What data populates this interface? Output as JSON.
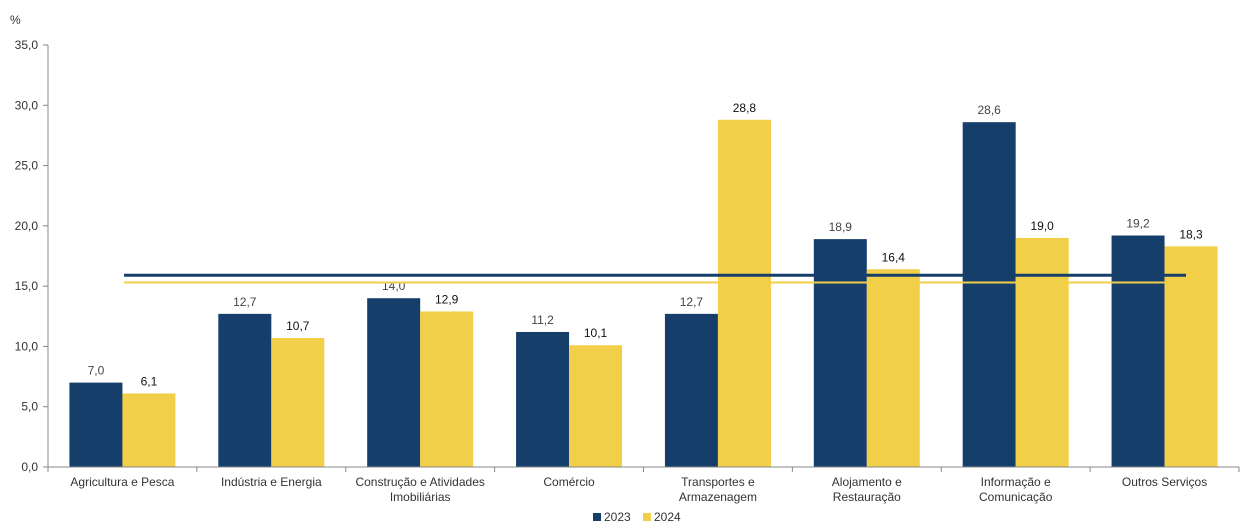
{
  "chart_data": {
    "type": "bar",
    "unit_label": "%",
    "categories": [
      [
        "Agricultura e Pesca"
      ],
      [
        "Indústria e Energia"
      ],
      [
        "Construção e Atividades",
        "Imobiliárias"
      ],
      [
        "Comércio"
      ],
      [
        "Transportes e",
        "Armazenagem"
      ],
      [
        "Alojamento e",
        "Restauração"
      ],
      [
        "Informação e",
        "Comunicação"
      ],
      [
        "Outros Serviços"
      ]
    ],
    "series": [
      {
        "name": "2023",
        "color": "#163E6B",
        "values": [
          7.0,
          12.7,
          14.0,
          11.2,
          12.7,
          18.9,
          28.6,
          19.2
        ],
        "labels": [
          "7,0",
          "12,7",
          "14,0",
          "11,2",
          "12,7",
          "18,9",
          "28,6",
          "19,2"
        ]
      },
      {
        "name": "2024",
        "color": "#F2CF48",
        "values": [
          6.1,
          10.7,
          12.9,
          10.1,
          28.8,
          16.4,
          19.0,
          18.3
        ],
        "labels": [
          "6,1",
          "10,7",
          "12,9",
          "10,1",
          "28,8",
          "16,4",
          "19,0",
          "18,3"
        ]
      }
    ],
    "reference_lines": [
      {
        "series": "2023",
        "value": 15.9,
        "color": "#163E6B"
      },
      {
        "series": "2024",
        "value": 15.3,
        "color": "#F2CF48"
      }
    ],
    "ylim": [
      0,
      35
    ],
    "yticks": [
      0,
      5,
      10,
      15,
      20,
      25,
      30,
      35
    ],
    "ytick_labels": [
      "0,0",
      "5,0",
      "10,0",
      "15,0",
      "20,0",
      "25,0",
      "30,0",
      "35,0"
    ],
    "legend_position": "bottom-center",
    "grid": false
  }
}
